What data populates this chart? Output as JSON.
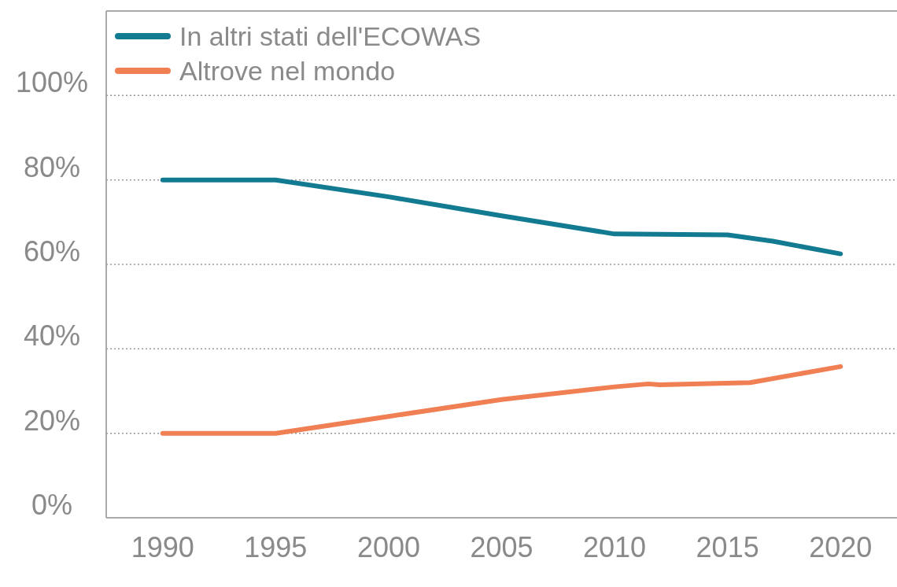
{
  "chart_data": {
    "type": "line",
    "x": [
      1990,
      1995,
      2000,
      2005,
      2010,
      2015,
      2017,
      2020
    ],
    "series": [
      {
        "name": "In altri stati dell'ECOWAS",
        "color": "#137b91",
        "values": [
          80,
          80,
          76,
          71.5,
          67.2,
          67,
          65.5,
          62.5
        ]
      },
      {
        "name": "Altrove nel mondo",
        "color": "#f07f54",
        "x": [
          1990,
          1995,
          2000,
          2005,
          2010,
          2011.5,
          2012,
          2016,
          2020
        ],
        "values": [
          20,
          20,
          24,
          28,
          31,
          31.7,
          31.5,
          32,
          35.8
        ]
      }
    ],
    "xlim": [
      1987.5,
      2022.5
    ],
    "xticks": [
      1990,
      1995,
      2000,
      2005,
      2010,
      2015,
      2020
    ],
    "ylim": [
      0,
      120
    ],
    "yticks": [
      {
        "value": 0,
        "label": "0%"
      },
      {
        "value": 20,
        "label": "20%"
      },
      {
        "value": 40,
        "label": "40%"
      },
      {
        "value": 60,
        "label": "60%"
      },
      {
        "value": 80,
        "label": "80%"
      },
      {
        "value": 100,
        "label": "100%"
      }
    ],
    "grid": "y",
    "legend": "top left",
    "marker": "none",
    "line_style": "solid"
  }
}
